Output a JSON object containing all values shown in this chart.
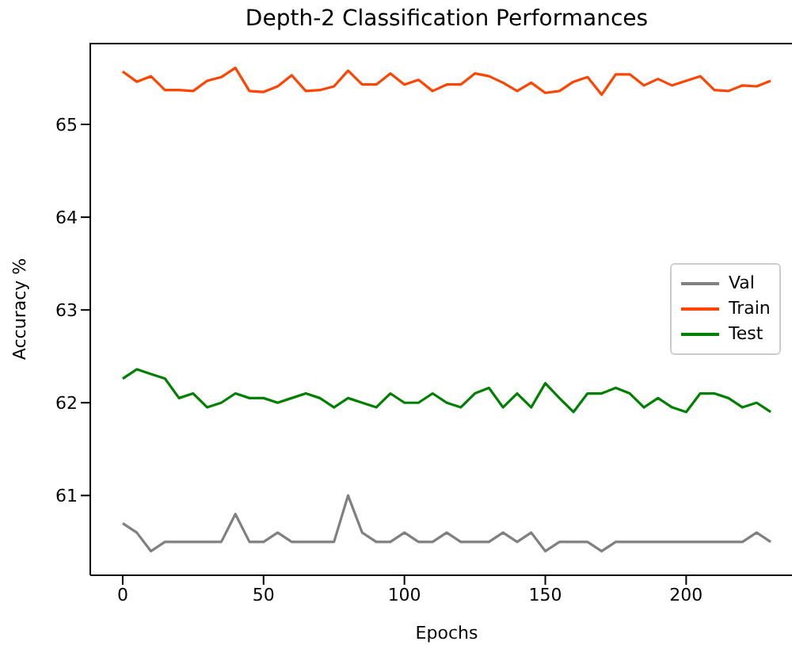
{
  "chart_data": {
    "type": "line",
    "title": "Depth-2 Classification Performances",
    "xlabel": "Epochs",
    "ylabel": "Accuracy %",
    "x": [
      0,
      5,
      10,
      15,
      20,
      25,
      30,
      35,
      40,
      45,
      50,
      55,
      60,
      65,
      70,
      75,
      80,
      85,
      90,
      95,
      100,
      105,
      110,
      115,
      120,
      125,
      130,
      135,
      140,
      145,
      150,
      155,
      160,
      165,
      170,
      175,
      180,
      185,
      190,
      195,
      200,
      205,
      210,
      215,
      220,
      225,
      230
    ],
    "series": [
      {
        "name": "Val",
        "color": "#808080",
        "values": [
          60.7,
          60.6,
          60.4,
          60.5,
          60.5,
          60.5,
          60.5,
          60.5,
          60.8,
          60.5,
          60.5,
          60.6,
          60.5,
          60.5,
          60.5,
          60.5,
          61.0,
          60.6,
          60.5,
          60.5,
          60.6,
          60.5,
          60.5,
          60.6,
          60.5,
          60.5,
          60.5,
          60.6,
          60.5,
          60.6,
          60.4,
          60.5,
          60.5,
          60.5,
          60.4,
          60.5,
          60.5,
          60.5,
          60.5,
          60.5,
          60.5,
          60.5,
          60.5,
          60.5,
          60.5,
          60.6,
          60.5
        ]
      },
      {
        "name": "Train",
        "color": "#ff4500",
        "values": [
          65.57,
          65.46,
          65.52,
          65.37,
          65.37,
          65.36,
          65.47,
          65.51,
          65.61,
          65.36,
          65.35,
          65.41,
          65.53,
          65.36,
          65.37,
          65.41,
          65.58,
          65.43,
          65.43,
          65.55,
          65.43,
          65.48,
          65.36,
          65.43,
          65.43,
          65.55,
          65.52,
          65.45,
          65.36,
          65.45,
          65.34,
          65.36,
          65.46,
          65.51,
          65.32,
          65.54,
          65.54,
          65.42,
          65.49,
          65.42,
          65.47,
          65.52,
          65.37,
          65.36,
          65.42,
          65.41,
          65.47
        ]
      },
      {
        "name": "Test",
        "color": "#008000",
        "values": [
          62.26,
          62.36,
          62.31,
          62.26,
          62.05,
          62.1,
          61.95,
          62.0,
          62.1,
          62.05,
          62.05,
          62.0,
          62.05,
          62.1,
          62.05,
          61.95,
          62.05,
          62.0,
          61.95,
          62.1,
          62.0,
          62.0,
          62.1,
          62.0,
          61.95,
          62.1,
          62.16,
          61.95,
          62.1,
          61.95,
          62.21,
          62.05,
          61.9,
          62.1,
          62.1,
          62.16,
          62.1,
          61.95,
          62.05,
          61.95,
          61.9,
          62.1,
          62.1,
          62.05,
          61.95,
          62.0,
          61.9
        ]
      }
    ],
    "xlim": [
      -11.5,
      241.5
    ],
    "xticks": [
      0,
      50,
      100,
      150,
      200
    ],
    "ylim": [
      60.14,
      65.88
    ],
    "yticks": [
      61,
      62,
      63,
      64,
      65
    ],
    "grid": false,
    "legend": "right",
    "marker": "none",
    "line_style": "solid"
  }
}
